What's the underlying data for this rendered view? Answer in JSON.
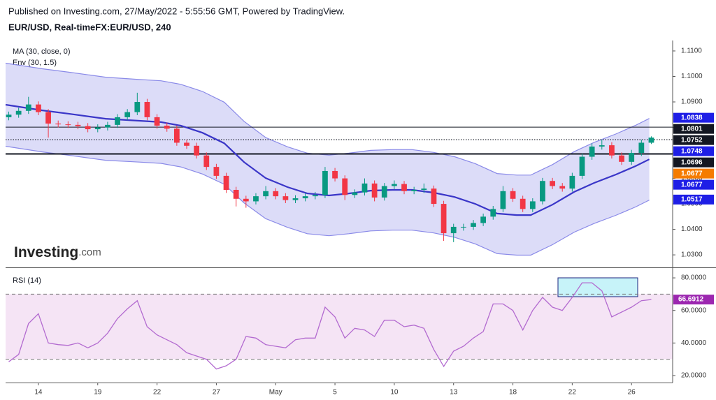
{
  "header": {
    "published": "Published on Investing.com, 27/May/2022 - 5:55:56 GMT, Powered by TradingView.",
    "symbol": "EUR/USD, Real-timeFX:EUR/USD, 240"
  },
  "logo": [
    "Investing",
    ".com"
  ],
  "chart_data": [
    {
      "type": "candlestick",
      "x": [
        -1.5,
        -1,
        -0.5,
        0,
        0.5,
        1,
        1.5,
        2,
        2.5,
        3,
        3.5,
        4,
        4.5,
        5,
        5.5,
        6,
        6.5,
        7,
        7.5,
        8,
        8.5,
        9,
        9.5,
        10,
        10.5,
        11,
        11.5,
        12,
        12.5,
        13,
        13.5,
        14,
        14.5,
        15,
        15.5,
        16,
        16.5,
        17,
        17.5,
        18,
        18.5,
        19,
        19.5,
        20,
        20.5,
        21,
        21.5,
        22,
        22.5,
        23,
        23.5,
        24,
        24.5,
        25,
        25.5,
        26,
        26.5,
        27,
        27.5,
        28,
        28.5,
        29,
        29.5,
        30,
        30.5,
        31
      ],
      "open": [
        1.084,
        1.085,
        1.0865,
        1.089,
        1.086,
        1.0815,
        1.0812,
        1.081,
        1.0805,
        1.0793,
        1.08,
        1.081,
        1.084,
        1.086,
        1.09,
        1.084,
        1.0807,
        1.0795,
        1.074,
        1.0728,
        1.069,
        1.0645,
        1.061,
        1.0555,
        1.052,
        1.051,
        1.053,
        1.055,
        1.053,
        1.0515,
        1.0522,
        1.053,
        1.0535,
        1.0629,
        1.06,
        1.0535,
        1.0545,
        1.058,
        1.0525,
        1.057,
        1.0578,
        1.055,
        1.0555,
        1.056,
        1.05,
        1.0385,
        1.041,
        1.041,
        1.0425,
        1.045,
        1.048,
        1.055,
        1.052,
        1.048,
        1.051,
        1.059,
        1.057,
        1.056,
        1.061,
        1.0685,
        1.0725,
        1.073,
        1.069,
        1.0665,
        1.07,
        1.074
      ],
      "high": [
        1.0862,
        1.0877,
        1.092,
        1.0902,
        1.0872,
        1.0827,
        1.0824,
        1.0822,
        1.0817,
        1.0812,
        1.0822,
        1.0852,
        1.0872,
        1.0936,
        1.0912,
        1.0852,
        1.0819,
        1.0807,
        1.0752,
        1.074,
        1.0702,
        1.0657,
        1.0622,
        1.0567,
        1.0532,
        1.0542,
        1.057,
        1.0562,
        1.0542,
        1.0534,
        1.0542,
        1.0547,
        1.0645,
        1.0641,
        1.0612,
        1.0557,
        1.06,
        1.0592,
        1.0582,
        1.0592,
        1.059,
        1.0567,
        1.058,
        1.0572,
        1.0512,
        1.0422,
        1.0422,
        1.0437,
        1.0462,
        1.0492,
        1.057,
        1.0562,
        1.0532,
        1.0522,
        1.0602,
        1.0602,
        1.0582,
        1.0622,
        1.0697,
        1.0737,
        1.0752,
        1.0742,
        1.0702,
        1.0712,
        1.0752,
        1.0765
      ],
      "low": [
        1.0828,
        1.0838,
        1.0853,
        1.0848,
        1.076,
        1.08,
        1.0798,
        1.0793,
        1.0781,
        1.0781,
        1.0788,
        1.0798,
        1.0828,
        1.0848,
        1.0828,
        1.0795,
        1.0783,
        1.0728,
        1.0716,
        1.0678,
        1.0633,
        1.0598,
        1.0543,
        1.049,
        1.0485,
        1.0498,
        1.0518,
        1.0518,
        1.0503,
        1.0503,
        1.051,
        1.0518,
        1.0523,
        1.0588,
        1.0515,
        1.0523,
        1.0533,
        1.051,
        1.0513,
        1.0558,
        1.0538,
        1.0538,
        1.0543,
        1.0488,
        1.0355,
        1.035,
        1.0395,
        1.0398,
        1.0413,
        1.0438,
        1.0468,
        1.0508,
        1.0468,
        1.0468,
        1.0498,
        1.0558,
        1.0548,
        1.0548,
        1.0598,
        1.0673,
        1.0713,
        1.0678,
        1.0653,
        1.0653,
        1.0688,
        1.0735
      ],
      "close": [
        1.085,
        1.0865,
        1.089,
        1.086,
        1.0815,
        1.0812,
        1.081,
        1.0805,
        1.0793,
        1.08,
        1.081,
        1.084,
        1.086,
        1.09,
        1.084,
        1.0807,
        1.0795,
        1.074,
        1.0728,
        1.069,
        1.0645,
        1.061,
        1.0555,
        1.052,
        1.051,
        1.053,
        1.055,
        1.053,
        1.0515,
        1.0522,
        1.053,
        1.0535,
        1.0629,
        1.06,
        1.0535,
        1.0545,
        1.058,
        1.0525,
        1.057,
        1.0578,
        1.055,
        1.0555,
        1.056,
        1.05,
        1.0385,
        1.041,
        1.041,
        1.0425,
        1.045,
        1.048,
        1.055,
        1.052,
        1.048,
        1.051,
        1.059,
        1.057,
        1.056,
        1.061,
        1.0685,
        1.0725,
        1.073,
        1.069,
        1.0665,
        1.07,
        1.074,
        1.076
      ],
      "up_color": "#089981",
      "down_color": "#f23645",
      "xlim": [
        -1.66,
        32.08
      ],
      "ylim": [
        1.0251,
        1.1141
      ],
      "yticks": [
        {
          "value": 1.03,
          "label": "1.0300"
        },
        {
          "value": 1.04,
          "label": "1.0400"
        },
        {
          "value": 1.05,
          "label": "1.0500"
        },
        {
          "value": 1.06,
          "label": "1.0600"
        },
        {
          "value": 1.07,
          "label": "1.0700"
        },
        {
          "value": 1.08,
          "label": "1.0800"
        },
        {
          "value": 1.09,
          "label": "1.0900"
        },
        {
          "value": 1.1,
          "label": "1.1000"
        },
        {
          "value": 1.11,
          "label": "1.1100"
        }
      ],
      "indicator_x": [
        -1.66,
        0.2,
        1.6,
        3.4,
        5.1,
        6.2,
        7.2,
        8.3,
        9.4,
        10.4,
        11.5,
        12.6,
        13.6,
        14.7,
        15.7,
        16.8,
        17.9,
        18.9,
        20.0,
        21.05,
        22.1,
        23.2,
        24.2,
        24.9,
        26.0,
        27.1,
        28.1,
        29.2,
        30.2,
        30.9
      ],
      "ma": {
        "name": "MA (30, close, 0)",
        "color": "#3a36c8",
        "values": [
          1.0889,
          1.0867,
          1.0853,
          1.0834,
          1.0826,
          1.0821,
          1.0807,
          1.0779,
          1.0738,
          1.0664,
          1.0601,
          1.0566,
          1.0541,
          1.0533,
          1.0541,
          1.0552,
          1.0555,
          1.0555,
          1.0544,
          1.0527,
          1.05,
          1.0462,
          1.0456,
          1.0456,
          1.0497,
          1.0547,
          1.0582,
          1.0615,
          1.0648,
          1.0675
        ]
      },
      "envelope": {
        "name": "Env (30, 1.5)",
        "color": "#8a8ae8",
        "fill": "#dcdcf8",
        "upper": [
          1.1052,
          1.103,
          1.1016,
          1.0997,
          1.0988,
          1.0983,
          1.0969,
          1.0941,
          1.0899,
          1.0824,
          1.076,
          1.0724,
          1.0699,
          1.0691,
          1.0699,
          1.071,
          1.0713,
          1.0713,
          1.0702,
          1.0685,
          1.0658,
          1.0619,
          1.0613,
          1.0613,
          1.0654,
          1.0705,
          1.0741,
          1.0774,
          1.0808,
          1.0835
        ],
        "lower": [
          1.0726,
          1.0704,
          1.069,
          1.0671,
          1.0664,
          1.0659,
          1.0645,
          1.0617,
          1.0577,
          1.0504,
          1.0442,
          1.0408,
          1.0383,
          1.0375,
          1.0383,
          1.0394,
          1.0397,
          1.0397,
          1.0386,
          1.0369,
          1.0343,
          1.0305,
          1.0299,
          1.0299,
          1.034,
          1.0389,
          1.0423,
          1.0455,
          1.0488,
          1.0515
        ]
      },
      "levels": [
        {
          "value": 1.0801,
          "style": "solid"
        },
        {
          "value": 1.0752,
          "style": "dotted"
        },
        {
          "value": 1.0696,
          "style": "thick"
        }
      ],
      "price_labels": [
        {
          "value": 1.0838,
          "color": "#1e1ee6"
        },
        {
          "value": 1.0801,
          "color": "#131722"
        },
        {
          "value": 1.0752,
          "color": "#131722"
        },
        {
          "value": 1.0748,
          "color": "#1e1ee6"
        },
        {
          "value": 1.0696,
          "color": "#131722"
        },
        {
          "value": 1.0677,
          "color": "#f57c00"
        },
        {
          "value": 1.0677,
          "color": "#1e1ee6"
        },
        {
          "value": 1.0517,
          "color": "#1e1ee6"
        }
      ]
    },
    {
      "type": "line",
      "x": [
        -1.5,
        -1,
        -0.5,
        0,
        0.5,
        1,
        1.5,
        2,
        2.5,
        3,
        3.5,
        4,
        4.5,
        5,
        5.5,
        6,
        6.5,
        7,
        7.5,
        8,
        8.5,
        9,
        9.5,
        10,
        10.5,
        11,
        11.5,
        12,
        12.5,
        13,
        13.5,
        14,
        14.5,
        15,
        15.5,
        16,
        16.5,
        17,
        17.5,
        18,
        18.5,
        19,
        19.5,
        20,
        20.5,
        21,
        21.5,
        22,
        22.5,
        23,
        23.5,
        24,
        24.5,
        25,
        25.5,
        26,
        26.5,
        27,
        27.5,
        28,
        28.5,
        29,
        29.5,
        30,
        30.5,
        31
      ],
      "series": [
        {
          "name": "RSI (14)",
          "color": "#b36bd0",
          "values": [
            28.5,
            33,
            52,
            58,
            40,
            39,
            38.5,
            40,
            37,
            40,
            46,
            55,
            61,
            66,
            50,
            45,
            42,
            39,
            34,
            32,
            30,
            24,
            26,
            30,
            44,
            43,
            39,
            38,
            37,
            42,
            43,
            43,
            62,
            56,
            43,
            49,
            48,
            44,
            54,
            54,
            50,
            51,
            49,
            36,
            25.6,
            35,
            38,
            43,
            47,
            64,
            64,
            60,
            48,
            60,
            68,
            62,
            60,
            68,
            77,
            77,
            72,
            56,
            59,
            62,
            66,
            66.6912
          ]
        }
      ],
      "last_color": "#9c27b0",
      "band": [
        30,
        70
      ],
      "band_color": "#f5e4f5",
      "xlim": [
        -1.66,
        32.08
      ],
      "ylim": [
        15.7,
        85.6
      ],
      "yticks": [
        {
          "value": 20,
          "label": "20.0000"
        },
        {
          "value": 40,
          "label": "40.0000"
        },
        {
          "value": 60,
          "label": "60.0000"
        },
        {
          "value": 80,
          "label": "80.0000"
        }
      ],
      "xticks": [
        {
          "value": 0,
          "label": "14"
        },
        {
          "value": 3,
          "label": "19"
        },
        {
          "value": 6,
          "label": "22"
        },
        {
          "value": 9,
          "label": "27"
        },
        {
          "value": 12,
          "label": "May"
        },
        {
          "value": 15,
          "label": "5"
        },
        {
          "value": 18,
          "label": "10"
        },
        {
          "value": 21,
          "label": "13"
        },
        {
          "value": 24,
          "label": "18"
        },
        {
          "value": 27,
          "label": "22"
        },
        {
          "value": 30,
          "label": "26"
        }
      ]
    }
  ]
}
